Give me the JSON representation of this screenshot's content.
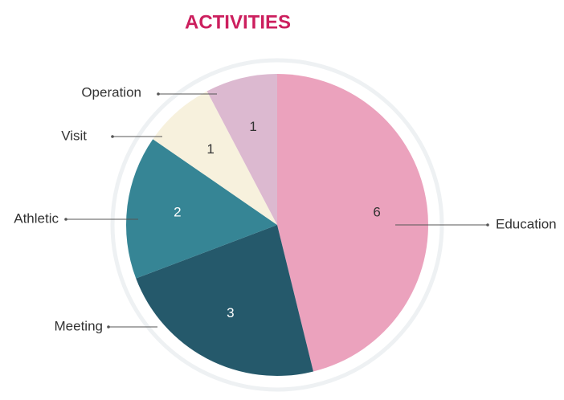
{
  "chart_data": {
    "type": "pie",
    "title": "ACTIVITIES",
    "categories": [
      "Education",
      "Meeting",
      "Athletic",
      "Visit",
      "Operation"
    ],
    "values": [
      6,
      3,
      2,
      1,
      1
    ],
    "colors": [
      "#eba2bd",
      "#25596b",
      "#368595",
      "#f7f1dd",
      "#dcb9d0"
    ]
  }
}
